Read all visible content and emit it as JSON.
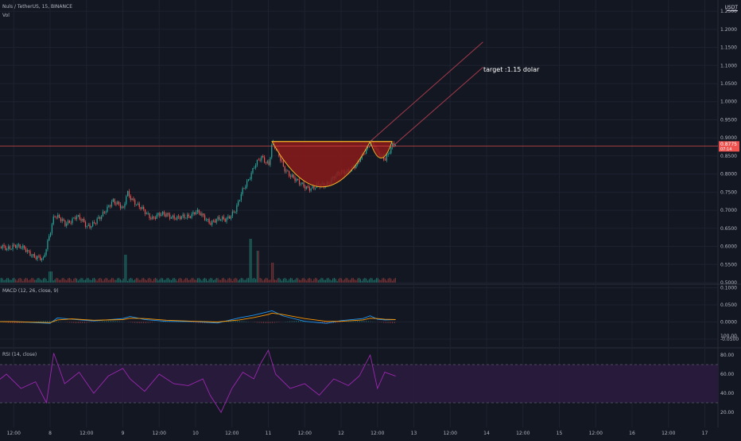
{
  "header": {
    "symbol_line": "Nuls / TetherUS, 15, BINANCE",
    "volume_label": "Vol",
    "quote_unit": "USDT"
  },
  "colors": {
    "background": "#131722",
    "grid": "#1e2230",
    "up": "#26a69a",
    "down": "#ef5350",
    "pattern_fill": "#8b1a1a",
    "pattern_stroke": "#f0b429",
    "channel": "#a33a4a",
    "macd_line": "#2196f3",
    "signal_line": "#ff9800",
    "rsi_line": "#9c27b0",
    "rsi_band": "#2a1b3d"
  },
  "chart_data": [
    {
      "type": "candlestick",
      "title": "Nuls / TetherUS, 15, BINANCE",
      "ylabel": "USDT",
      "y_ticks": [
        "1.2500",
        "1.2000",
        "1.1500",
        "1.1000",
        "1.0500",
        "1.0000",
        "0.9500",
        "0.9000",
        "0.8500",
        "0.8000",
        "0.7500",
        "0.7000",
        "0.6500",
        "0.6000",
        "0.5500",
        "0.5000"
      ],
      "ylim": [
        0.5,
        1.27
      ],
      "current_price": "0.8775",
      "current_price_countdown": "07:14",
      "x_tick_labels": [
        "12:00",
        "8",
        "12:00",
        "9",
        "12:00",
        "10",
        "12:00",
        "11",
        "12:00",
        "12",
        "12:00",
        "13",
        "12:00",
        "14",
        "12:00",
        "15",
        "12:00",
        "16",
        "12:00",
        "17"
      ],
      "price_path": [
        {
          "day": 7.0,
          "price": 0.595
        },
        {
          "day": 7.25,
          "price": 0.6
        },
        {
          "day": 7.4,
          "price": 0.592
        },
        {
          "day": 7.5,
          "price": 0.606
        },
        {
          "day": 7.7,
          "price": 0.584
        },
        {
          "day": 7.9,
          "price": 0.56
        },
        {
          "day": 8.05,
          "price": 0.69
        },
        {
          "day": 8.2,
          "price": 0.66
        },
        {
          "day": 8.35,
          "price": 0.685
        },
        {
          "day": 8.5,
          "price": 0.655
        },
        {
          "day": 8.7,
          "price": 0.68
        },
        {
          "day": 8.85,
          "price": 0.73
        },
        {
          "day": 9.0,
          "price": 0.7
        },
        {
          "day": 9.05,
          "price": 0.752
        },
        {
          "day": 9.2,
          "price": 0.71
        },
        {
          "day": 9.4,
          "price": 0.68
        },
        {
          "day": 9.6,
          "price": 0.69
        },
        {
          "day": 9.75,
          "price": 0.675
        },
        {
          "day": 10.0,
          "price": 0.695
        },
        {
          "day": 10.2,
          "price": 0.668
        },
        {
          "day": 10.4,
          "price": 0.676
        },
        {
          "day": 10.55,
          "price": 0.7
        },
        {
          "day": 10.65,
          "price": 0.76
        },
        {
          "day": 10.8,
          "price": 0.82
        },
        {
          "day": 10.9,
          "price": 0.845
        },
        {
          "day": 11.0,
          "price": 0.83
        },
        {
          "day": 11.05,
          "price": 0.89
        },
        {
          "day": 11.2,
          "price": 0.82
        },
        {
          "day": 11.4,
          "price": 0.775
        },
        {
          "day": 11.6,
          "price": 0.76
        },
        {
          "day": 11.8,
          "price": 0.775
        },
        {
          "day": 12.0,
          "price": 0.805
        },
        {
          "day": 12.2,
          "price": 0.82
        },
        {
          "day": 12.3,
          "price": 0.86
        },
        {
          "day": 12.4,
          "price": 0.89
        },
        {
          "day": 12.5,
          "price": 0.855
        },
        {
          "day": 12.6,
          "price": 0.845
        },
        {
          "day": 12.7,
          "price": 0.878
        },
        {
          "day": 12.75,
          "price": 0.88
        }
      ],
      "pattern": {
        "name": "cup and handle",
        "rim_price": 0.89,
        "cup_left_day": 11.05,
        "cup_bottom_day": 11.75,
        "cup_bottom_price": 0.76,
        "cup_right_day": 12.4,
        "handle_bottom_day": 12.55,
        "handle_bottom_price": 0.838,
        "handle_right_day": 12.7
      },
      "channel": {
        "upper": {
          "start_day": 12.4,
          "start_price": 0.89,
          "end_day": 13.95,
          "end_price": 1.165
        },
        "lower": {
          "start_day": 12.7,
          "start_price": 0.875,
          "end_day": 13.95,
          "end_price": 1.095
        }
      },
      "annotation": "target :1.15 dolar"
    },
    {
      "type": "line",
      "title": "MACD (12, 26, close, 9)",
      "y_ticks": [
        "0.1000",
        "0.0500",
        "0.0000",
        "-0.0500"
      ],
      "ylim": [
        -0.075,
        0.1
      ],
      "series": [
        {
          "name": "MACD",
          "x": [
            7.0,
            7.5,
            8.0,
            8.1,
            8.3,
            8.6,
            9.0,
            9.1,
            9.3,
            9.6,
            10.0,
            10.3,
            10.6,
            10.8,
            11.0,
            11.05,
            11.2,
            11.5,
            11.8,
            12.0,
            12.3,
            12.4,
            12.5,
            12.6,
            12.75
          ],
          "y": [
            0.002,
            0.001,
            -0.004,
            0.012,
            0.008,
            0.003,
            0.01,
            0.016,
            0.007,
            0.002,
            0.001,
            -0.003,
            0.012,
            0.02,
            0.03,
            0.033,
            0.018,
            0.002,
            -0.004,
            0.004,
            0.01,
            0.018,
            0.008,
            0.006,
            0.007
          ]
        },
        {
          "name": "Signal",
          "x": [
            7.0,
            7.5,
            8.0,
            8.1,
            8.3,
            8.6,
            9.0,
            9.1,
            9.3,
            9.6,
            10.0,
            10.3,
            10.6,
            10.8,
            11.0,
            11.05,
            11.2,
            11.5,
            11.8,
            12.0,
            12.3,
            12.4,
            12.5,
            12.6,
            12.75
          ],
          "y": [
            0.001,
            0.001,
            -0.002,
            0.006,
            0.009,
            0.005,
            0.007,
            0.011,
            0.01,
            0.005,
            0.002,
            0.0,
            0.006,
            0.013,
            0.022,
            0.026,
            0.022,
            0.01,
            0.002,
            0.002,
            0.006,
            0.011,
            0.01,
            0.008,
            0.007
          ]
        }
      ]
    },
    {
      "type": "line",
      "title": "RSI (14, close)",
      "y_ticks": [
        "100.00",
        "80.00",
        "60.00",
        "40.00",
        "20.00"
      ],
      "ylim": [
        0,
        100
      ],
      "band": [
        30,
        70
      ],
      "series": [
        {
          "name": "RSI",
          "x": [
            7.0,
            7.2,
            7.4,
            7.6,
            7.8,
            7.95,
            8.05,
            8.2,
            8.4,
            8.6,
            8.8,
            9.0,
            9.1,
            9.3,
            9.5,
            9.7,
            9.9,
            10.1,
            10.2,
            10.35,
            10.5,
            10.65,
            10.8,
            10.9,
            11.0,
            11.1,
            11.3,
            11.5,
            11.7,
            11.9,
            12.1,
            12.25,
            12.4,
            12.5,
            12.6,
            12.75
          ],
          "y": [
            55,
            48,
            60,
            45,
            52,
            30,
            82,
            50,
            62,
            40,
            58,
            66,
            55,
            42,
            60,
            50,
            48,
            55,
            38,
            20,
            45,
            62,
            55,
            72,
            85,
            60,
            45,
            50,
            38,
            55,
            48,
            58,
            80,
            45,
            62,
            58
          ]
        }
      ]
    }
  ]
}
